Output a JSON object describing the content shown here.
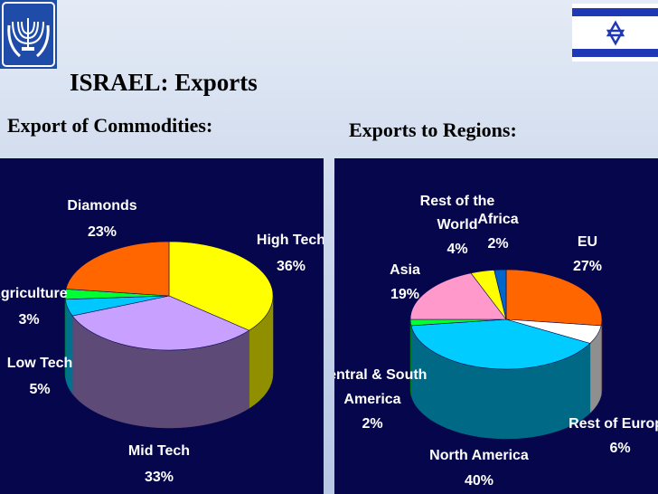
{
  "title": "ISRAEL: Exports",
  "flag_colors": {
    "stripe": "#1f38b5",
    "field": "#ffffff"
  },
  "emblem_color": "#1e4ca8",
  "chart_data": [
    {
      "type": "pie",
      "title": "Export of Commodities:",
      "slices": [
        {
          "label": "High Tech",
          "value": "36%",
          "percent": 36,
          "color": "#ffff00",
          "side": "#8f8f00"
        },
        {
          "label": "Mid Tech",
          "value": "33%",
          "percent": 33,
          "color": "#c8a0ff",
          "side": "#5e4a76"
        },
        {
          "label": "Low Tech",
          "value": "5%",
          "percent": 5,
          "color": "#00c8ff",
          "side": "#00728f"
        },
        {
          "label": "Agriculture",
          "value": "3%",
          "percent": 3,
          "color": "#00ff33",
          "side": "#007a19"
        },
        {
          "label": "Diamonds",
          "value": "23%",
          "percent": 23,
          "color": "#ff6600",
          "side": "#8c3800"
        }
      ]
    },
    {
      "type": "pie",
      "title": "Exports to Regions:",
      "slices": [
        {
          "label": "EU",
          "value": "27%",
          "percent": 27,
          "color": "#ff6600",
          "side": "#8c3800"
        },
        {
          "label": "Rest of Europe",
          "value": "6%",
          "percent": 6,
          "color": "#ffffff",
          "side": "#8f8f8f"
        },
        {
          "label": "North America",
          "value": "40%",
          "percent": 40,
          "color": "#00ccff",
          "side": "#006a86"
        },
        {
          "label": "Central & South America",
          "value": "2%",
          "percent": 2,
          "color": "#00ff33",
          "side": "#007a19"
        },
        {
          "label": "Asia",
          "value": "19%",
          "percent": 19,
          "color": "#ff99cc",
          "side": "#8a4f6e"
        },
        {
          "label": "Rest of the World",
          "value": "4%",
          "percent": 4,
          "color": "#ffff00",
          "side": "#8f8f00"
        },
        {
          "label": "Africa",
          "value": "2%",
          "percent": 2,
          "color": "#0066cc",
          "side": "#003366"
        }
      ]
    }
  ]
}
